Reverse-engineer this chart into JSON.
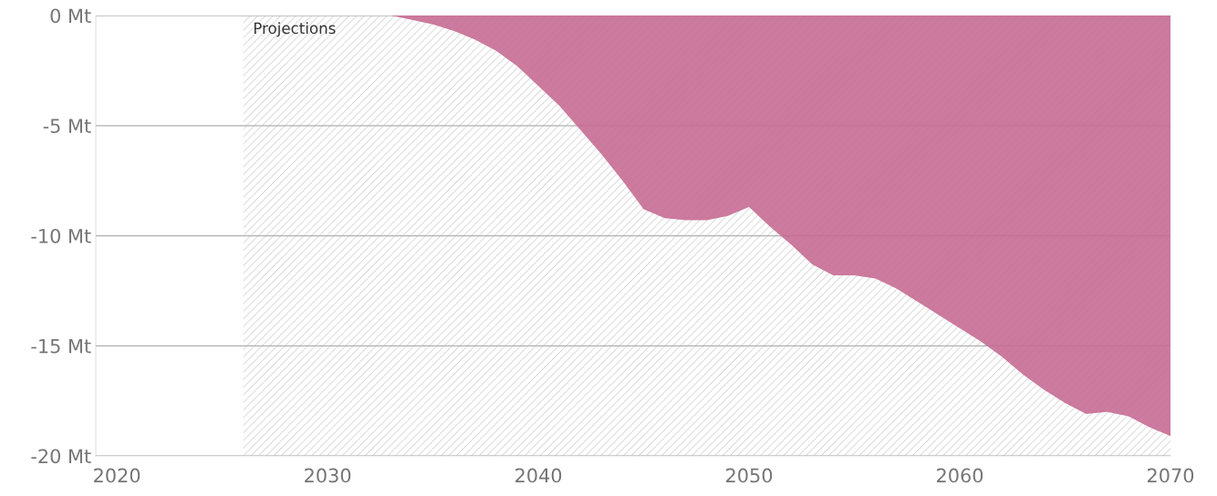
{
  "chart_data": {
    "type": "area",
    "x": [
      2033,
      2034,
      2035,
      2036,
      2037,
      2038,
      2039,
      2040,
      2041,
      2042,
      2043,
      2044,
      2045,
      2046,
      2047,
      2048,
      2049,
      2050,
      2051,
      2052,
      2053,
      2054,
      2055,
      2056,
      2057,
      2058,
      2059,
      2060,
      2061,
      2062,
      2063,
      2064,
      2065,
      2066,
      2067,
      2068,
      2069,
      2070
    ],
    "series": [
      {
        "color": "#c66b94",
        "values": [
          0,
          -0.2,
          -0.4,
          -0.7,
          -1.1,
          -1.6,
          -2.3,
          -3.2,
          -4.1,
          -5.2,
          -6.3,
          -7.5,
          -8.8,
          -9.2,
          -9.3,
          -9.3,
          -9.1,
          -8.7,
          -9.6,
          -10.4,
          -11.3,
          -11.8,
          -11.8,
          -11.95,
          -12.4,
          -13.0,
          -13.6,
          -14.2,
          -14.8,
          -15.5,
          -16.3,
          -17.0,
          -17.6,
          -18.1,
          -18.0,
          -18.2,
          -18.7,
          -19.1
        ]
      }
    ],
    "xlim": [
      2019,
      2070
    ],
    "xticks": [
      2020,
      2030,
      2040,
      2050,
      2060,
      2070
    ],
    "ylim": [
      -20,
      0
    ],
    "yticks": [
      {
        "value": -20,
        "label": "-20 Mt"
      },
      {
        "value": -15,
        "label": "-15 Mt"
      },
      {
        "value": -10,
        "label": "-10 Mt"
      },
      {
        "value": -5,
        "label": "-5 Mt"
      },
      {
        "value": 0,
        "label": "0 Mt"
      }
    ],
    "bands": [
      {
        "axis": "x",
        "from": 2026,
        "to": 2070,
        "label": "Projections",
        "color": "#bdbdbd"
      }
    ],
    "grid": "y",
    "legend": false
  }
}
